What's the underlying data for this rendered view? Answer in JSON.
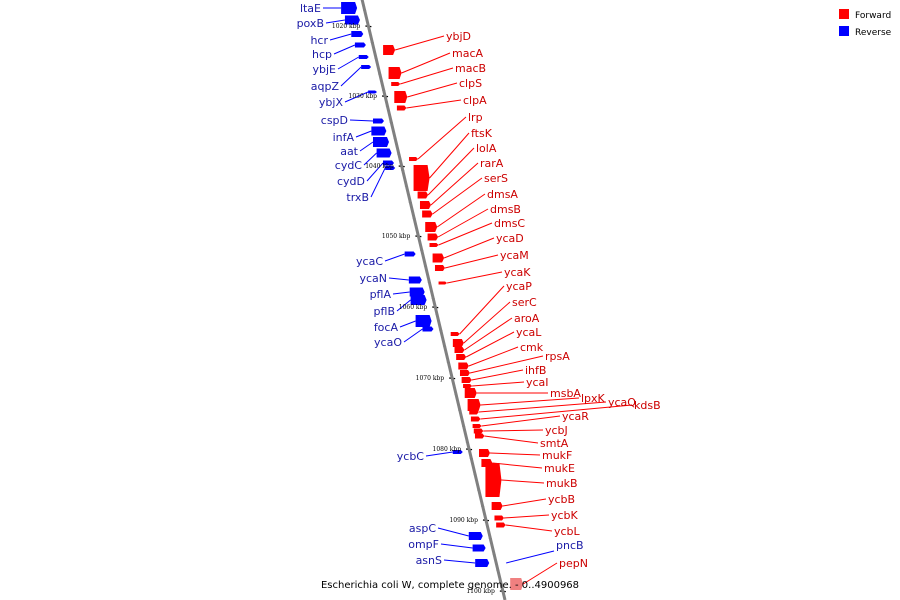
{
  "caption": "Escherichia coli W, complete genome. - 0..4900968",
  "legend": [
    {
      "label": "Forward",
      "color": "#ff0000"
    },
    {
      "label": "Reverse",
      "color": "#0000ff"
    }
  ],
  "colors": {
    "forward": "#ff0000",
    "reverse": "#0000ff",
    "forward_label": "#cc0000",
    "reverse_label": "#1a1aa6",
    "highlight": "#f08080",
    "backbone": "#808080"
  },
  "kbp_ticks": [
    "1020 kbp",
    "1030 kbp",
    "1040 kbp",
    "1050 kbp",
    "1060 kbp",
    "1070 kbp",
    "1080 kbp",
    "1090 kbp",
    "1100 kbp"
  ],
  "reverse_genes": [
    "ltaE",
    "poxB",
    "hcr",
    "hcp",
    "ybjE",
    "aqpZ",
    "ybjX",
    "cspD",
    "infA",
    "aat",
    "cydC",
    "cydD",
    "trxB",
    "ycaC",
    "ycaN",
    "pflA",
    "pflB",
    "focA",
    "ycaO",
    "ycbC",
    "aspC",
    "ompF",
    "asnS",
    "pncB"
  ],
  "forward_genes": [
    "ybjD",
    "macA",
    "macB",
    "clpS",
    "clpA",
    "lrp",
    "ftsK",
    "lolA",
    "rarA",
    "serS",
    "dmsA",
    "dmsB",
    "dmsC",
    "ycaD",
    "ycaM",
    "ycaK",
    "ycaP",
    "serC",
    "aroA",
    "ycaL",
    "cmk",
    "rpsA",
    "ihfB",
    "ycaI",
    "msbA",
    "lpxK",
    "ycaQ",
    "kdsB",
    "ycaR",
    "ycbJ",
    "smtA",
    "mukF",
    "mukE",
    "mukB",
    "ycbB",
    "ycbK",
    "ycbL",
    "pepN"
  ]
}
